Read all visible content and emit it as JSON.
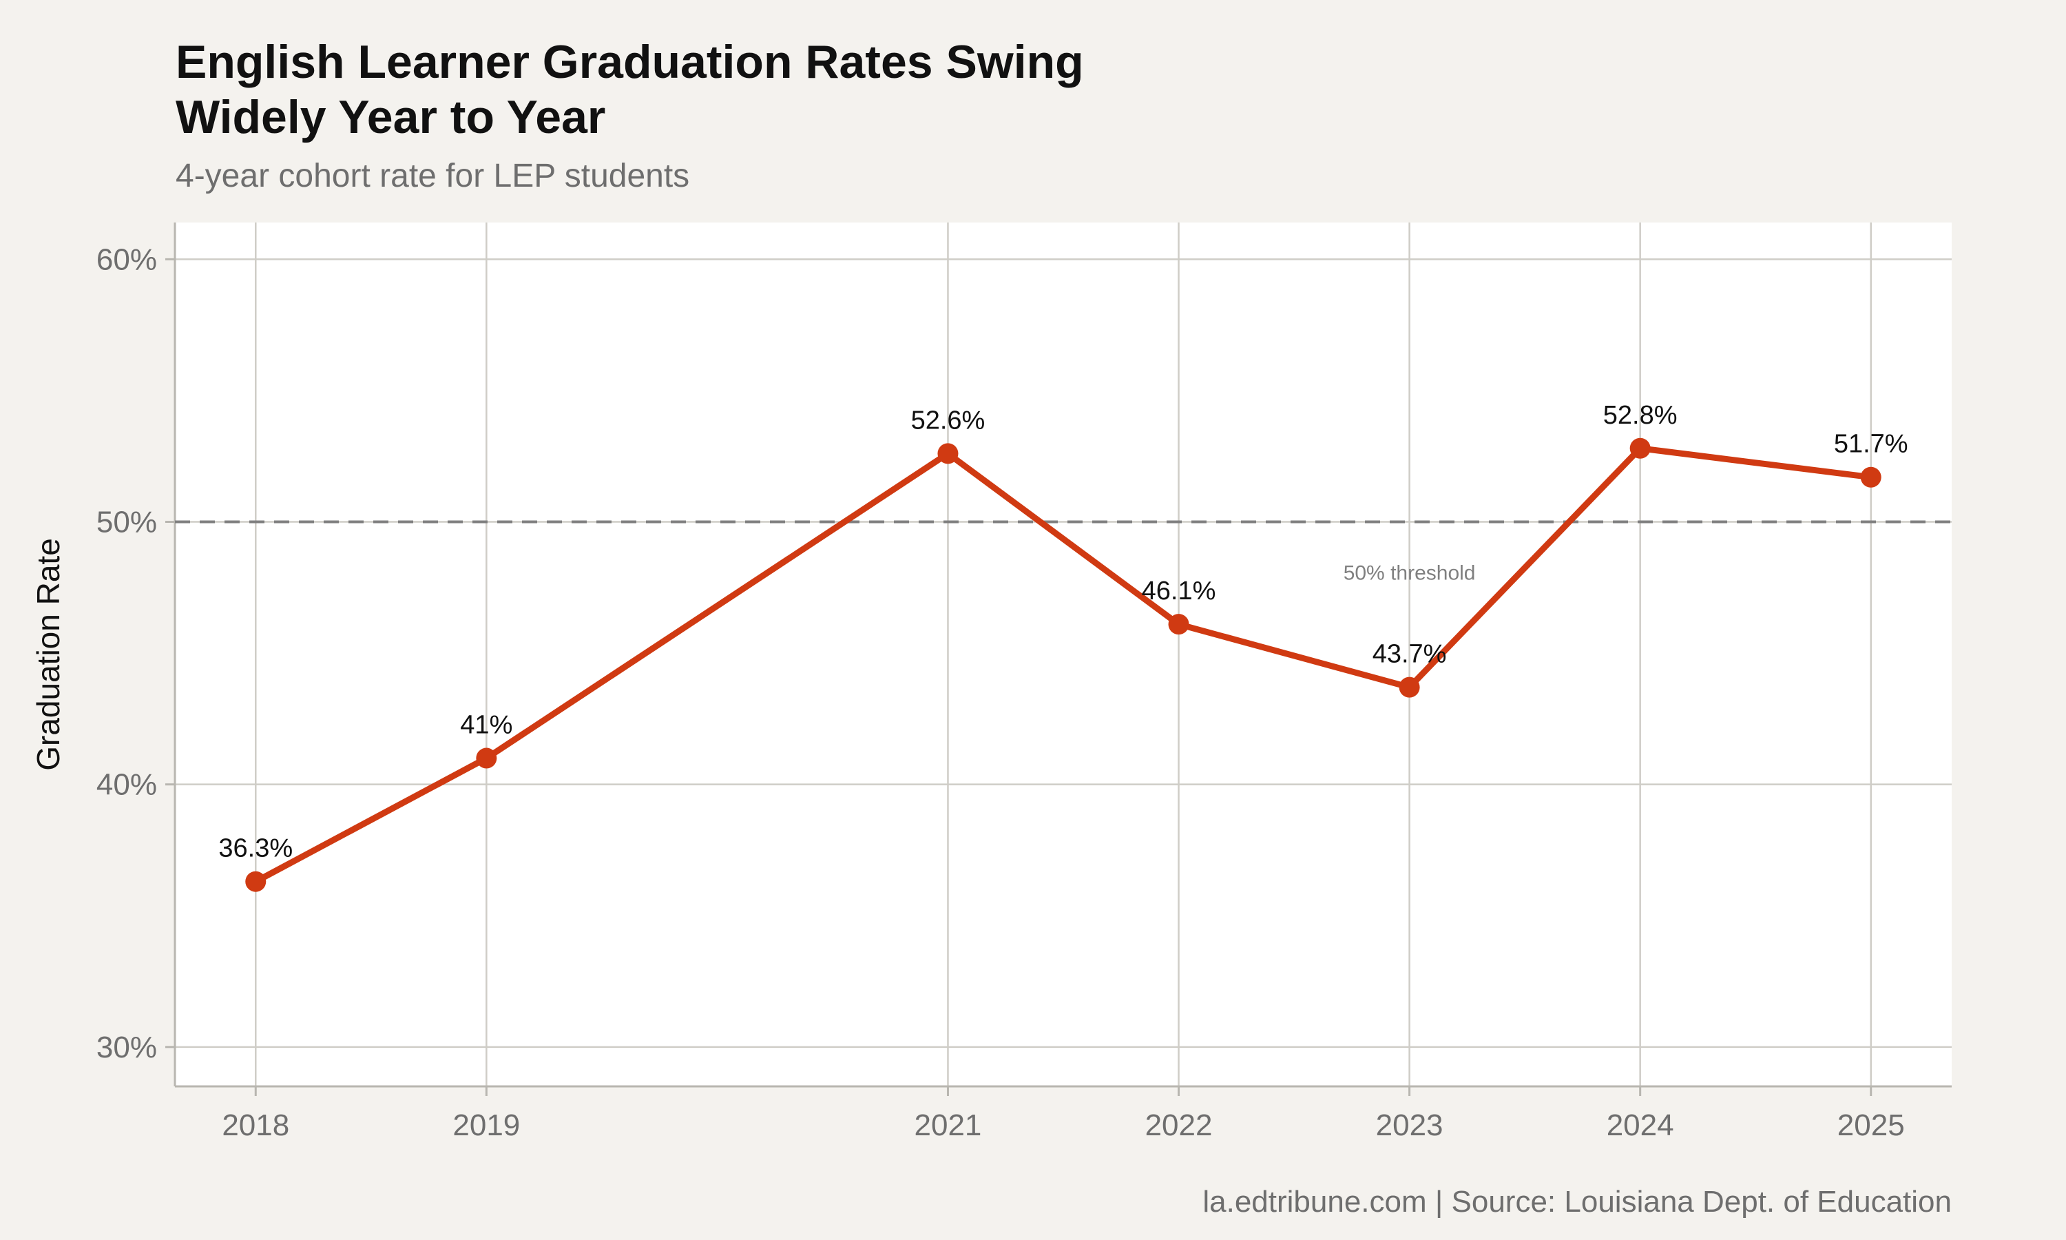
{
  "colors": {
    "background": "#f4f2ee",
    "panel": "#ffffff",
    "grid": "#cfcdc7",
    "line": "#d03a12",
    "reference_line": "#808080"
  },
  "chart_data": {
    "type": "line",
    "title_lines": [
      "English Learner Graduation Rates Swing",
      "Widely Year to Year"
    ],
    "subtitle": "4-year cohort rate for LEP students",
    "xlabel": "",
    "ylabel": "Graduation Rate",
    "x": [
      2018,
      2019,
      2021,
      2022,
      2023,
      2024,
      2025
    ],
    "x_tick_labels": [
      "2018",
      "2019",
      "2021",
      "2022",
      "2023",
      "2024",
      "2025"
    ],
    "values": [
      36.3,
      41.0,
      52.6,
      46.1,
      43.7,
      52.8,
      51.7
    ],
    "data_labels": [
      "36.3%",
      "41%",
      "52.6%",
      "46.1%",
      "43.7%",
      "52.8%",
      "51.7%"
    ],
    "y_ticks": [
      30,
      40,
      50,
      60
    ],
    "y_tick_labels": [
      "30%",
      "40%",
      "50%",
      "60%"
    ],
    "xlim": [
      2017.65,
      2025.35
    ],
    "ylim": [
      28.5,
      61.4
    ],
    "grid": true,
    "reference_line": {
      "y": 50,
      "label": "50% threshold",
      "label_x": 2023
    },
    "caption": "la.edtribune.com | Source: Louisiana Dept. of Education"
  }
}
